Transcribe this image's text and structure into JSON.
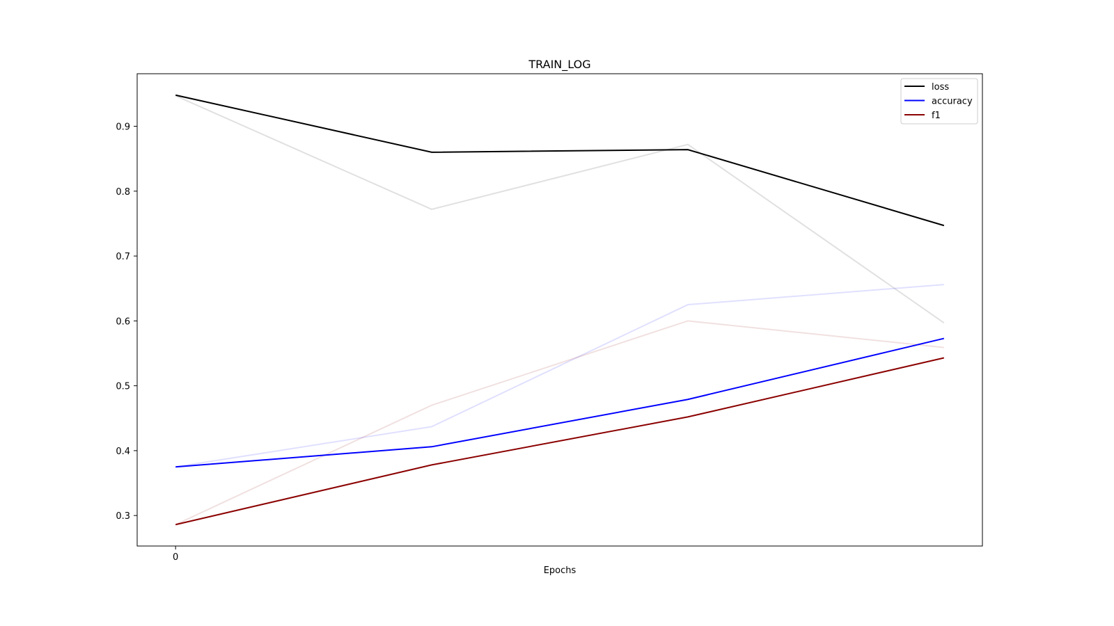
{
  "chart_data": {
    "type": "line",
    "title": "TRAIN_LOG",
    "xlabel": "Epochs",
    "ylabel": "",
    "x": [
      0,
      1,
      2,
      3
    ],
    "x_tick_labels": [
      "0"
    ],
    "y_ticks": [
      0.3,
      0.4,
      0.5,
      0.6,
      0.7,
      0.8,
      0.9
    ],
    "y_tick_labels": [
      "0.3",
      "0.4",
      "0.5",
      "0.6",
      "0.7",
      "0.8",
      "0.9"
    ],
    "xlim": [
      -0.15,
      3.15
    ],
    "ylim": [
      0.253,
      0.981
    ],
    "grid": false,
    "legend_position": "top-right",
    "series": [
      {
        "name": "loss",
        "color": "#000000",
        "values": [
          0.948,
          0.86,
          0.864,
          0.747
        ],
        "raw_values": [
          0.947,
          0.772,
          0.872,
          0.597
        ]
      },
      {
        "name": "accuracy",
        "color": "#0000ff",
        "values": [
          0.375,
          0.406,
          0.479,
          0.573
        ],
        "raw_values": [
          0.375,
          0.437,
          0.625,
          0.656
        ]
      },
      {
        "name": "f1",
        "color": "#8b0000",
        "values": [
          0.286,
          0.378,
          0.452,
          0.543
        ],
        "raw_values": [
          0.286,
          0.47,
          0.6,
          0.559
        ]
      }
    ]
  }
}
